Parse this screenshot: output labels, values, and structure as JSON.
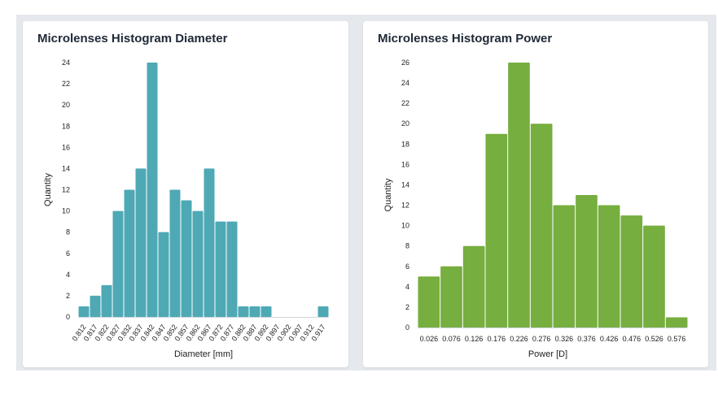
{
  "colors": {
    "bar_a": "#4ea9b5",
    "bar_b": "#76ae3f",
    "axis": "#cfd6dd"
  },
  "chart_data": [
    {
      "type": "bar",
      "title": "Microlenses Histogram Diameter",
      "xlabel": "Diameter [mm]",
      "ylabel": "Quantity",
      "categories": [
        "0.812",
        "0.817",
        "0.822",
        "0.827",
        "0.832",
        "0.837",
        "0.842",
        "0.847",
        "0.852",
        "0.857",
        "0.862",
        "0.867",
        "0.872",
        "0.877",
        "0.882",
        "0.887",
        "0.892",
        "0.897",
        "0.902",
        "0.907",
        "0.912",
        "0.917"
      ],
      "values": [
        1,
        2,
        3,
        10,
        12,
        14,
        24,
        8,
        12,
        11,
        10,
        14,
        9,
        9,
        1,
        1,
        1,
        0,
        0,
        0,
        0,
        1
      ],
      "ylim": [
        0,
        24
      ],
      "yticks": [
        "0",
        "2",
        "4",
        "6",
        "8",
        "10",
        "12",
        "14",
        "16",
        "18",
        "20",
        "22",
        "24"
      ],
      "xtick_rotation": "rotated",
      "grid": false
    },
    {
      "type": "bar",
      "title": "Microlenses Histogram Power",
      "xlabel": "Power [D]",
      "ylabel": "Quantity",
      "categories": [
        "0.026",
        "0.076",
        "0.126",
        "0.176",
        "0.226",
        "0.276",
        "0.326",
        "0.376",
        "0.426",
        "0.476",
        "0.526",
        "0.576"
      ],
      "values": [
        5,
        6,
        8,
        19,
        26,
        20,
        12,
        13,
        12,
        11,
        10,
        1
      ],
      "ylim": [
        0,
        26
      ],
      "yticks": [
        "0",
        "2",
        "4",
        "6",
        "8",
        "10",
        "12",
        "14",
        "16",
        "18",
        "20",
        "22",
        "24",
        "26"
      ],
      "xtick_rotation": "horizontal",
      "grid": false
    }
  ]
}
